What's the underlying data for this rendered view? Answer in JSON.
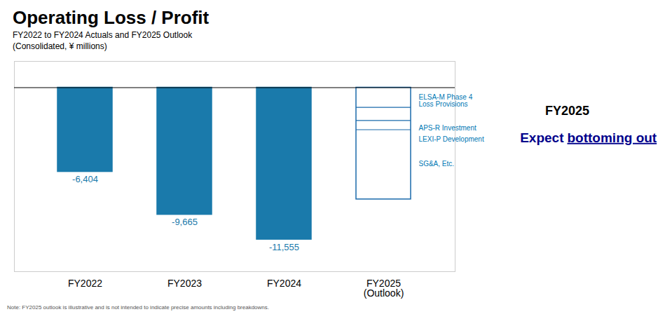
{
  "chart_data": {
    "type": "bar",
    "title": "Operating Loss / Profit",
    "subtitle": [
      "FY2022 to FY2024 Actuals and FY2025 Outlook",
      "(Consolidated, ¥ millions)"
    ],
    "categories": [
      "FY2022",
      "FY2023",
      "FY2024",
      "FY2025\n(Outlook)"
    ],
    "values": [
      -6404,
      -9665,
      -11555,
      -8500
    ],
    "value_labels": [
      "-6,404",
      "-9,665",
      "-11,555",
      null
    ],
    "data_labels": true,
    "label_color": "#1a7aab",
    "colors": [
      "#1a7aab",
      "#1a7aab",
      "#1a7aab",
      "#1a6aab"
    ],
    "fills": [
      "#1a7aab",
      "#1a7aab",
      "#1a7aab",
      "#ffffff"
    ],
    "segment_lines": [
      -1500,
      -2500,
      -3200
    ],
    "ylim": [
      -14000,
      2000
    ],
    "yticks": [],
    "tick_labels": "x",
    "grid": false,
    "annotations": [
      {
        "text": "ELSA-M Phase 4\nLoss Provisions",
        "color": "#0078b4"
      },
      {
        "text": "APS-R Investment",
        "color": "#0078b4"
      },
      {
        "text": "LEXI-P Development",
        "color": "#0078b4"
      },
      {
        "text": "SG&A, Etc.",
        "color": "#0078b4"
      }
    ],
    "outlook_label": {
      "text": "FY2025",
      "color": "#000000"
    },
    "callout": {
      "text": [
        "Expect",
        "bottoming out"
      ],
      "color": "#00008B"
    },
    "note": "Note: FY2025 outlook is illustrative and is not intended to indicate precise amounts including breakdowns."
  }
}
